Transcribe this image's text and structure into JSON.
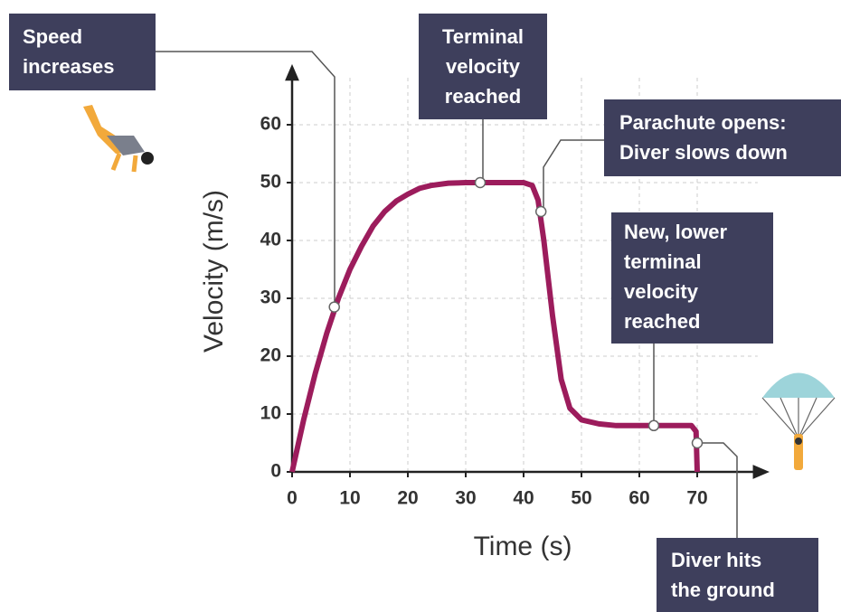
{
  "chart_data": {
    "type": "line",
    "x_label": "Time (s)",
    "y_label": "Velocity (m/s)",
    "xlim": [
      0,
      82
    ],
    "ylim": [
      0,
      70
    ],
    "xticks": [
      0,
      10,
      20,
      30,
      40,
      50,
      60,
      70
    ],
    "yticks": [
      0,
      10,
      20,
      30,
      40,
      50,
      60
    ],
    "grid": true,
    "series": [
      {
        "color": "#9c1c5c",
        "x": [
          0,
          2,
          4,
          6,
          8,
          10,
          12,
          14,
          16,
          18,
          20,
          22,
          24,
          27,
          30,
          40,
          41.5,
          42.5,
          43.5,
          45,
          46.5,
          48,
          50,
          53,
          56,
          69,
          69.8,
          70
        ],
        "values": [
          0,
          9,
          17,
          24,
          30,
          35,
          39,
          42.5,
          45,
          46.8,
          48,
          49,
          49.5,
          49.9,
          50,
          50,
          49.5,
          47,
          40,
          27,
          16,
          11,
          9,
          8.3,
          8,
          8,
          7,
          0
        ]
      }
    ],
    "annotations": [
      {
        "lines": [
          "Speed",
          "increases"
        ],
        "x": 7.3,
        "y": 28.5
      },
      {
        "lines": [
          "Terminal",
          "velocity",
          "reached"
        ],
        "x": 32.5,
        "y": 50
      },
      {
        "lines": [
          "Parachute opens:",
          "Diver slows down"
        ],
        "x": 43,
        "y": 45
      },
      {
        "lines": [
          "New, lower",
          "terminal",
          "velocity",
          "reached"
        ],
        "x": 62.5,
        "y": 8
      },
      {
        "lines": [
          "Diver hits",
          "the ground"
        ],
        "x": 70,
        "y": 5
      }
    ]
  }
}
